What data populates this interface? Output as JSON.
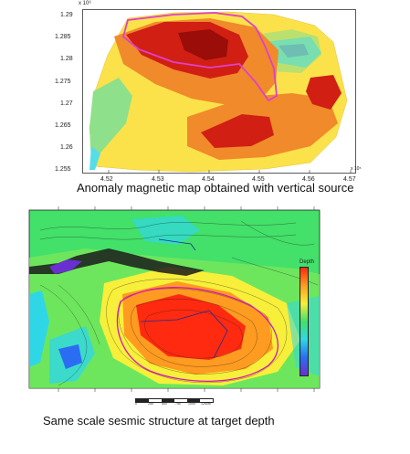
{
  "figure_top": {
    "exponent_label": "x 10⁶",
    "corner_label": "x 10⁵",
    "y_ticks": [
      "1.29",
      "1.285",
      "1.28",
      "1.275",
      "1.27",
      "1.265",
      "1.26",
      "1.255"
    ],
    "x_ticks": [
      "4.52",
      "4.53",
      "4.54",
      "4.55",
      "4.56",
      "4.57"
    ],
    "caption": "Anomaly magnetic map obtained with vertical source",
    "colors": {
      "red": "#d11f14",
      "orange": "#f08a2a",
      "yellow": "#fbe24a",
      "green": "#8fe08a",
      "cyan": "#57dde9",
      "blue": "#3d8cf0",
      "outline": "#e040c8"
    }
  },
  "figure_bottom": {
    "legend_title": "Depth",
    "caption": "Same scale sesmic structure at target depth",
    "scale_ticks": [
      "0",
      "250",
      "500",
      "750",
      "1000",
      "1250m"
    ],
    "colors": {
      "red": "#ff2a10",
      "orange": "#ff9b20",
      "yellow": "#f7ef3a",
      "green": "#43e06a",
      "cyan": "#2fd7e6",
      "blue": "#2b6df2",
      "purple": "#6a2fd0",
      "outline": "#d816b8"
    }
  }
}
